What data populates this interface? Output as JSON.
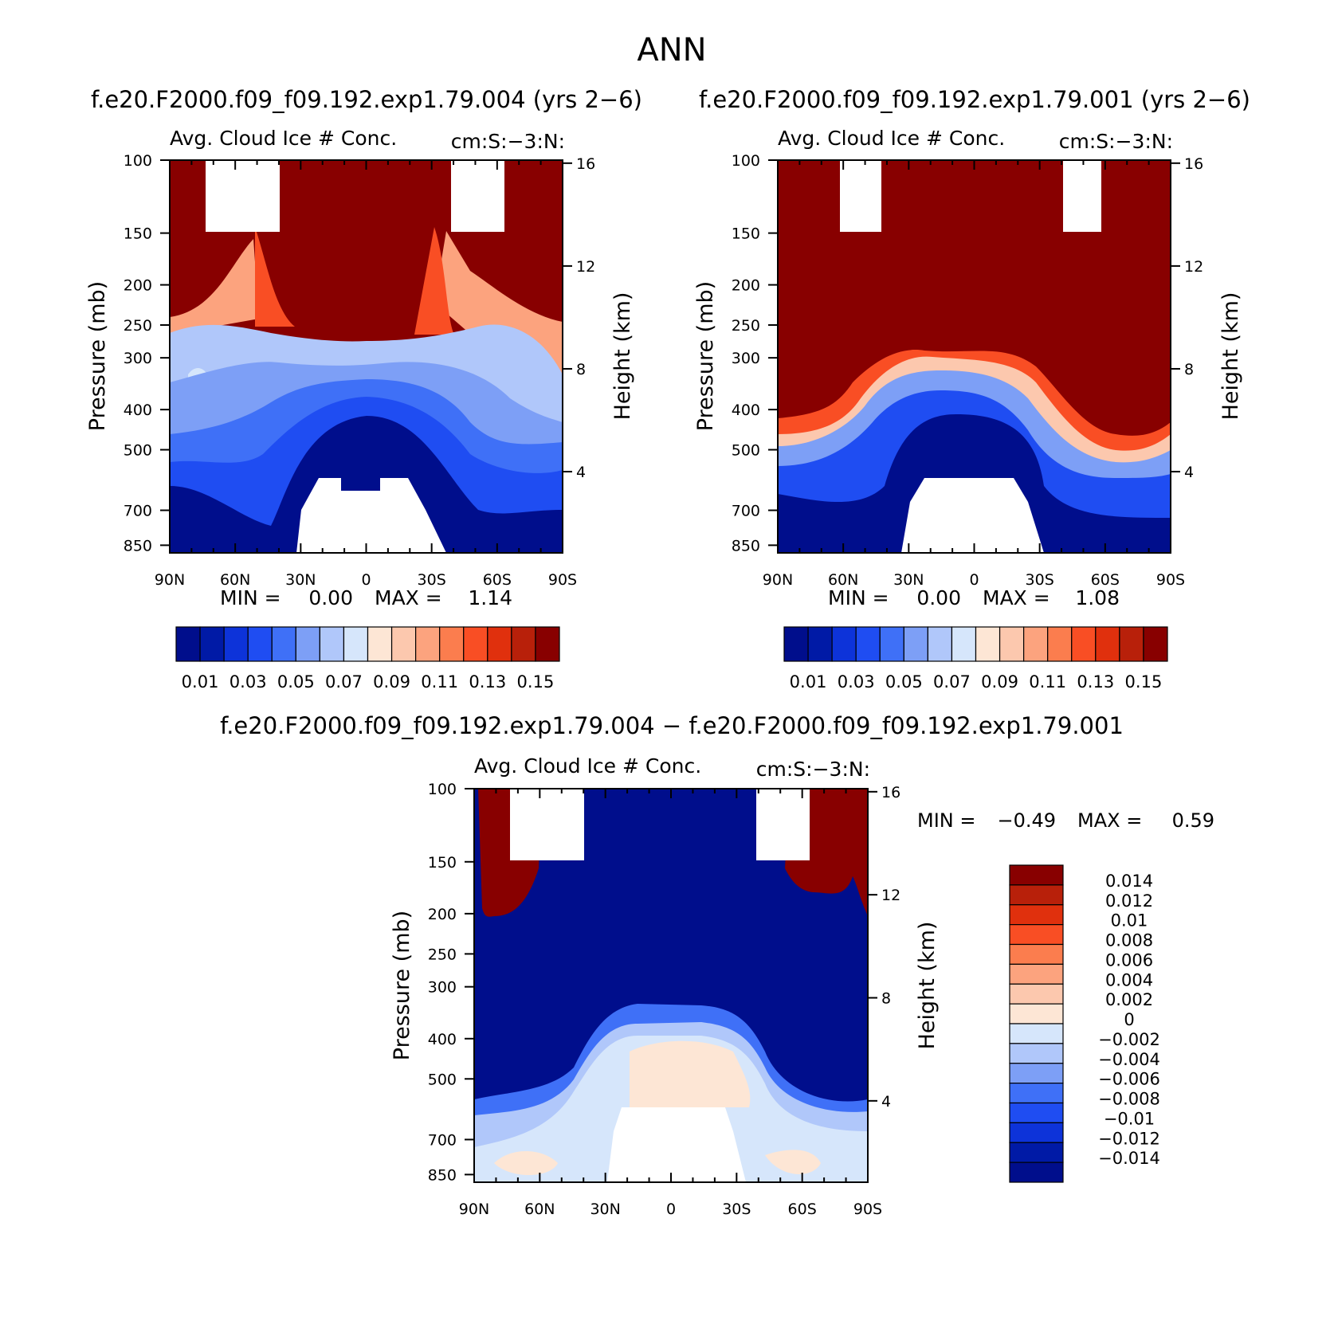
{
  "figure": {
    "title": "ANN",
    "bottom_title": "f.e20.F2000.f09_f09.192.exp1.79.004 − f.e20.F2000.f09_f09.192.exp1.79.001"
  },
  "palettes": {
    "cool_warm": [
      "#000e8c",
      "#001aa6",
      "#0d33d9",
      "#1f4df2",
      "#3f70f7",
      "#7d9ff6",
      "#b0c7fa",
      "#d6e6fb",
      "#fde6d5",
      "#fcc8ae",
      "#fca37e",
      "#fb7d4e",
      "#f94e24",
      "#e0300d",
      "#b8200a",
      "#880000"
    ]
  },
  "chart_data": [
    {
      "type": "heatmap",
      "case": "f.e20.F2000.f09_f09.192.exp1.79.004 (yrs 2−6)",
      "left_title": "Avg. Cloud Ice # Conc.",
      "units": "cm:S:−3:N:",
      "ylabel": "Pressure (mb)",
      "y2label": "Height (km)",
      "x_ticks": [
        "90N",
        "60N",
        "30N",
        "0",
        "30S",
        "60S",
        "90S"
      ],
      "y_ticks": [
        100,
        150,
        200,
        250,
        300,
        400,
        500,
        700,
        850
      ],
      "y2_ticks": [
        16,
        12,
        8,
        4
      ],
      "min_label": "MIN =",
      "min_value": "0.00",
      "max_label": "MAX =",
      "max_value": "1.14",
      "colorbar_labels": [
        "0.01",
        "0.03",
        "0.05",
        "0.07",
        "0.09",
        "0.11",
        "0.13",
        "0.15"
      ],
      "missing_boxes_lat": [
        [
          -74,
          -40
        ],
        [
          38,
          62
        ]
      ]
    },
    {
      "type": "heatmap",
      "case": "f.e20.F2000.f09_f09.192.exp1.79.001 (yrs 2−6)",
      "left_title": "Avg. Cloud Ice # Conc.",
      "units": "cm:S:−3:N:",
      "ylabel": "Pressure (mb)",
      "y2label": "Height (km)",
      "x_ticks": [
        "90N",
        "60N",
        "30N",
        "0",
        "30S",
        "60S",
        "90S"
      ],
      "y_ticks": [
        100,
        150,
        200,
        250,
        300,
        400,
        500,
        700,
        850
      ],
      "y2_ticks": [
        16,
        12,
        8,
        4
      ],
      "min_label": "MIN =",
      "min_value": "0.00",
      "max_label": "MAX =",
      "max_value": "1.08",
      "colorbar_labels": [
        "0.01",
        "0.03",
        "0.05",
        "0.07",
        "0.09",
        "0.11",
        "0.13",
        "0.15"
      ],
      "missing_boxes_lat": [
        [
          -61,
          -43
        ],
        [
          41,
          59
        ]
      ]
    },
    {
      "type": "heatmap",
      "case": "difference",
      "left_title": "Avg. Cloud Ice # Conc.",
      "units": "cm:S:−3:N:",
      "ylabel": "Pressure (mb)",
      "y2label": "Height (km)",
      "x_ticks": [
        "90N",
        "60N",
        "30N",
        "0",
        "30S",
        "60S",
        "90S"
      ],
      "y_ticks": [
        100,
        150,
        200,
        250,
        300,
        400,
        500,
        700,
        850
      ],
      "y2_ticks": [
        16,
        12,
        8,
        4
      ],
      "min_label": "MIN =",
      "min_value": "−0.49",
      "max_label": "MAX =",
      "max_value": "0.59",
      "colorbar_labels": [
        "0.014",
        "0.012",
        "0.01",
        "0.008",
        "0.006",
        "0.004",
        "0.002",
        "0",
        "−0.002",
        "−0.004",
        "−0.006",
        "−0.008",
        "−0.01",
        "−0.012",
        "−0.014"
      ],
      "missing_boxes_lat": [
        [
          -74,
          -40
        ],
        [
          38,
          62
        ]
      ]
    }
  ]
}
